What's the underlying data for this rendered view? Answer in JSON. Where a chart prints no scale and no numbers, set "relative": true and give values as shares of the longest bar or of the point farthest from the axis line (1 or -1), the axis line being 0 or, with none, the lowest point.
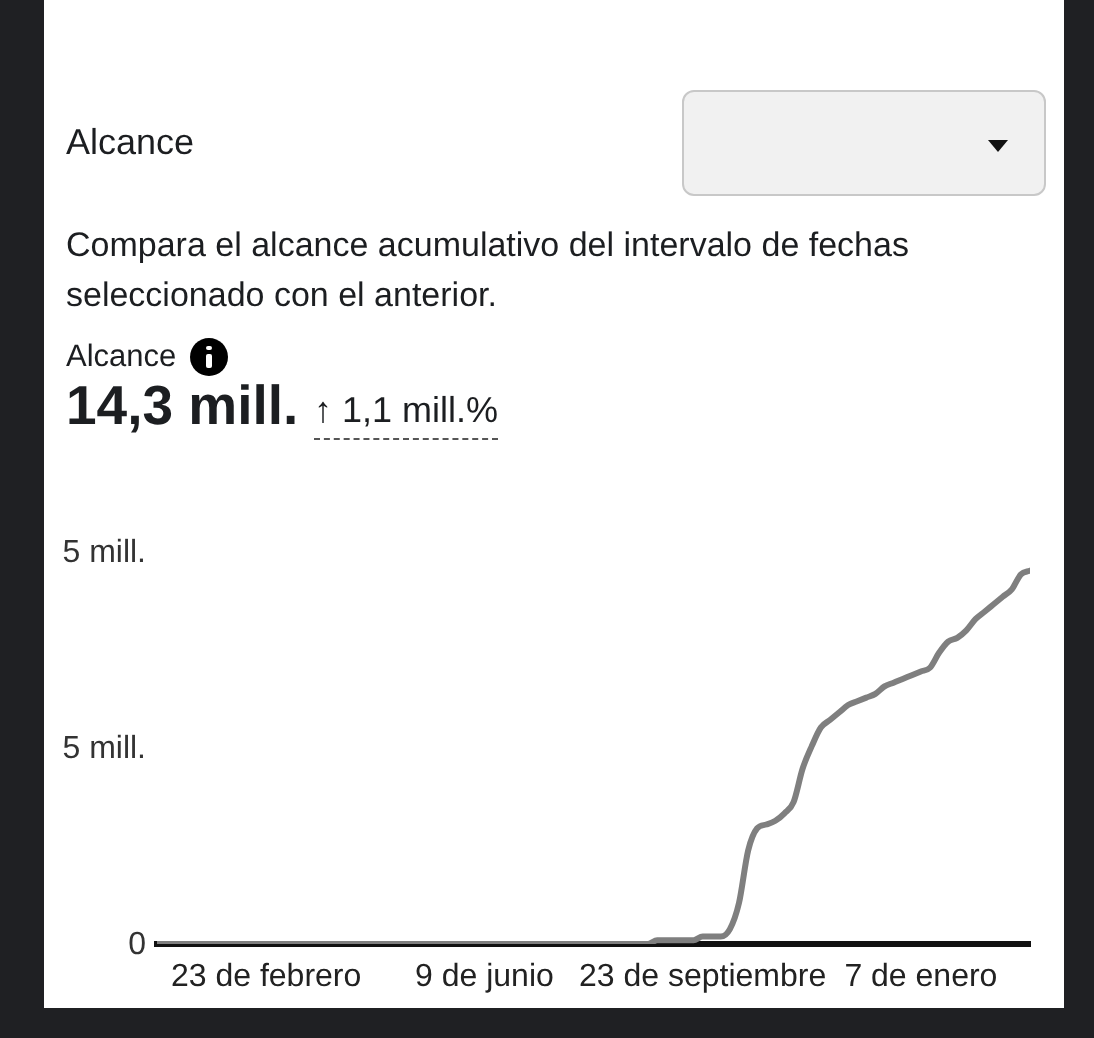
{
  "chart_data": {
    "type": "line",
    "title": "Alcance",
    "subtitle": "Compara el alcance acumulativo del intervalo de fechas seleccionado con el anterior.",
    "annotations": [
      "Alcance",
      "14,3 mill.",
      "↑ 1,1 mill.%",
      "5 mill.",
      "5 mill.",
      "0"
    ],
    "relative": true,
    "categories": [
      null,
      null,
      null,
      null,
      null,
      null,
      null,
      null,
      null,
      null,
      null,
      null,
      "23 de febrero",
      null,
      null,
      null,
      null,
      null,
      null,
      null,
      null,
      null,
      null,
      null,
      null,
      null,
      null,
      null,
      null,
      null,
      null,
      null,
      null,
      null,
      null,
      null,
      "9 de junio",
      null,
      null,
      null,
      null,
      null,
      null,
      null,
      null,
      null,
      null,
      null,
      null,
      null,
      null,
      null,
      null,
      null,
      null,
      null,
      null,
      null,
      null,
      null,
      "23 de septiembre",
      null,
      null,
      null,
      null,
      null,
      null,
      null,
      null,
      null,
      null,
      null,
      null,
      null,
      null,
      null,
      null,
      null,
      null,
      null,
      null,
      null,
      null,
      null,
      "7 de enero",
      null,
      null,
      null,
      null,
      null,
      null,
      null,
      null,
      null,
      null,
      null,
      null
    ],
    "series": [
      {
        "color": "#7f7f7f",
        "values": [
          0,
          0,
          0,
          0,
          0,
          0,
          0,
          0,
          0,
          0,
          0,
          0,
          0,
          0,
          0,
          0,
          0,
          0,
          0,
          0,
          0,
          0,
          0,
          0,
          0,
          0,
          0,
          0,
          0,
          0,
          0,
          0,
          0,
          0,
          0,
          0,
          0,
          0,
          0,
          0,
          0,
          0,
          0,
          0,
          0,
          0,
          0,
          0,
          0,
          0,
          0,
          0,
          0,
          0,
          0,
          0.01,
          0.01,
          0.01,
          0.01,
          0.01,
          0.02,
          0.02,
          0.02,
          0.04,
          0.11,
          0.25,
          0.31,
          0.32,
          0.33,
          0.35,
          0.38,
          0.47,
          0.53,
          0.58,
          0.6,
          0.62,
          0.64,
          0.65,
          0.66,
          0.67,
          0.69,
          0.7,
          0.71,
          0.72,
          0.73,
          0.74,
          0.78,
          0.81,
          0.82,
          0.84,
          0.87,
          0.89,
          0.91,
          0.93,
          0.95,
          0.99,
          1
        ]
      }
    ],
    "marker": "none",
    "line_style": "solid"
  }
}
